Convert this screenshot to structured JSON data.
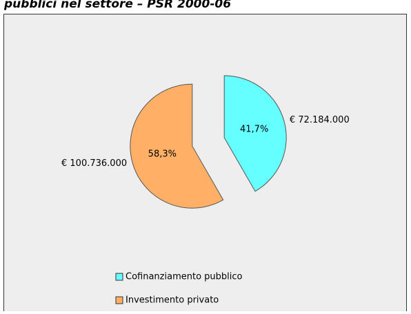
{
  "chart_data": {
    "type": "pie",
    "title": "pubblici nel settore – PSR 2000-06",
    "categories": [
      "Cofinanziamento pubblico",
      "Investimento privato"
    ],
    "values": [
      41.7,
      58.3
    ],
    "value_labels": [
      "41,7%",
      "58,3%"
    ],
    "amounts": [
      72184000,
      100736000
    ],
    "amount_labels": [
      "€ 72.184.000",
      "€ 100.736.000"
    ],
    "colors": [
      "#66ffff",
      "#ffb066"
    ]
  }
}
